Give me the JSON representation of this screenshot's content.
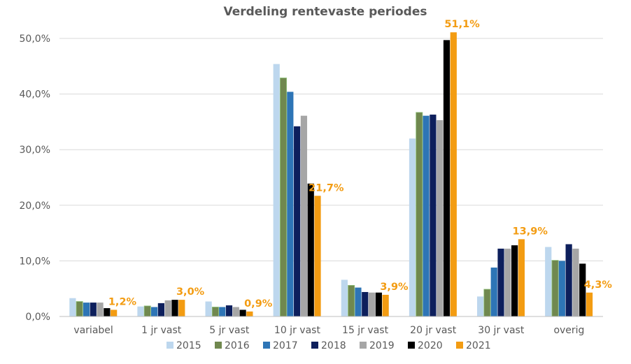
{
  "chart_data": {
    "type": "bar",
    "title": "Verdeling rentevaste periodes",
    "xlabel": "",
    "ylabel": "",
    "categories": [
      "variabel",
      "1 jr vast",
      "5 jr vast",
      "10 jr vast",
      "15 jr vast",
      "20 jr vast",
      "30 jr vast",
      "overig"
    ],
    "ylim": [
      0,
      50
    ],
    "yticks": [
      "0,0%",
      "10,0%",
      "20,0%",
      "30,0%",
      "40,0%",
      "50,0%"
    ],
    "grid": true,
    "legend_position": "bottom",
    "series": [
      {
        "name": "2015",
        "color": "#bdd7ee",
        "values": [
          3.3,
          1.8,
          2.7,
          45.4,
          6.6,
          32.0,
          3.6,
          12.5
        ]
      },
      {
        "name": "2016",
        "color": "#70884f",
        "values": [
          2.7,
          1.9,
          1.7,
          42.9,
          5.6,
          36.7,
          4.9,
          10.1
        ]
      },
      {
        "name": "2017",
        "color": "#2e75b6",
        "values": [
          2.5,
          1.7,
          1.7,
          40.4,
          5.2,
          36.1,
          8.8,
          10.0
        ]
      },
      {
        "name": "2018",
        "color": "#0d1f5c",
        "values": [
          2.5,
          2.4,
          2.0,
          34.2,
          4.4,
          36.3,
          12.2,
          13.0
        ]
      },
      {
        "name": "2019",
        "color": "#a6a6a6",
        "values": [
          2.5,
          2.9,
          1.7,
          36.1,
          4.3,
          35.3,
          12.2,
          12.2
        ]
      },
      {
        "name": "2020",
        "color": "#000000",
        "values": [
          1.5,
          3.0,
          1.2,
          23.9,
          4.3,
          49.7,
          12.8,
          9.5
        ]
      },
      {
        "name": "2021",
        "color": "#f39c12",
        "values": [
          1.2,
          3.0,
          0.9,
          21.7,
          3.9,
          51.1,
          13.9,
          4.3
        ]
      }
    ],
    "data_labels": {
      "series": "2021",
      "color": "#f39c12",
      "labels": [
        "1,2%",
        "3,0%",
        "0,9%",
        "21,7%",
        "3,9%",
        "51,1%",
        "13,9%",
        "4,3%"
      ]
    }
  }
}
